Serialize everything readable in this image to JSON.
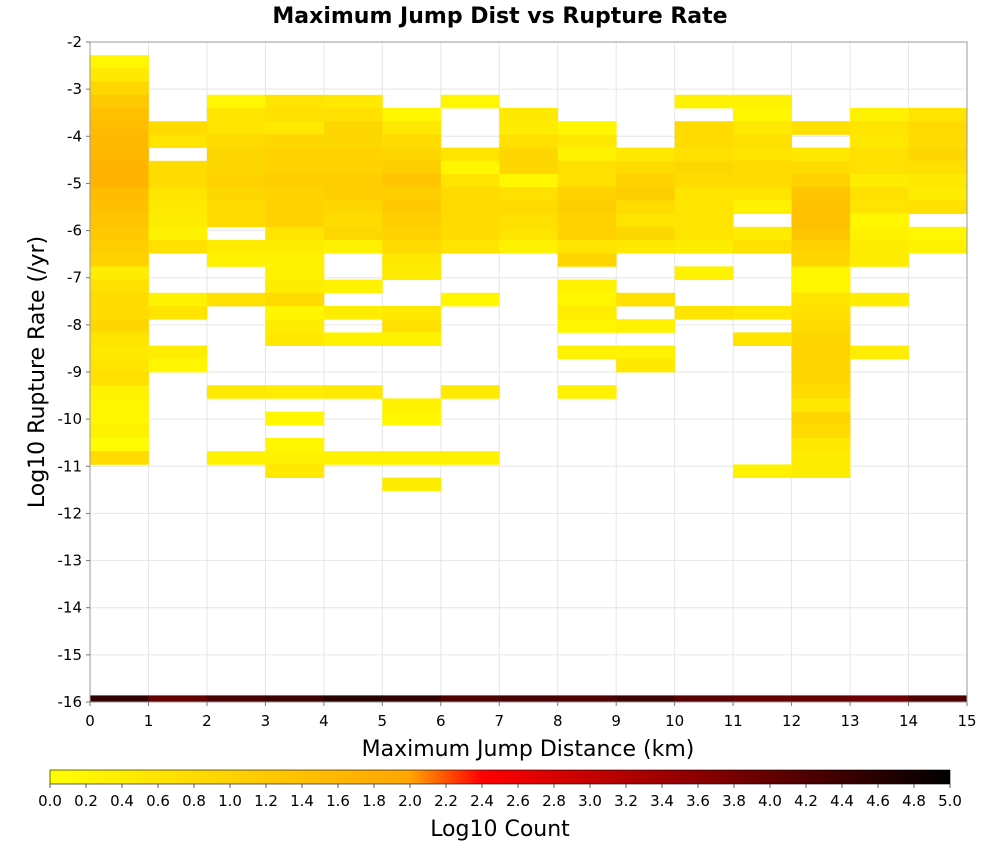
{
  "chart_data": {
    "type": "heatmap",
    "title": "Maximum Jump Dist vs Rupture Rate",
    "xlabel": "Maximum Jump Distance (km)",
    "ylabel": "Log10 Rupture Rate (/yr)",
    "colorbar_label": "Log10 Count",
    "xlim": [
      0,
      15
    ],
    "ylim": [
      -16,
      -2
    ],
    "x_ticks": [
      "0",
      "1",
      "2",
      "3",
      "4",
      "5",
      "6",
      "7",
      "8",
      "9",
      "10",
      "11",
      "12",
      "13",
      "14",
      "15"
    ],
    "y_ticks": [
      "-2",
      "-3",
      "-4",
      "-5",
      "-6",
      "-7",
      "-8",
      "-9",
      "-10",
      "-11",
      "-12",
      "-13",
      "-14",
      "-15",
      "-16"
    ],
    "x_bin_width": 1,
    "y_bin_height": 0.28,
    "colorbar_range": [
      0,
      5
    ],
    "colorbar_ticks": [
      "0.0",
      "0.2",
      "0.4",
      "0.6",
      "0.8",
      "1.0",
      "1.2",
      "1.4",
      "1.6",
      "1.8",
      "2.0",
      "2.2",
      "2.4",
      "2.6",
      "2.8",
      "3.0",
      "3.2",
      "3.4",
      "3.6",
      "3.8",
      "4.0",
      "4.2",
      "4.4",
      "4.6",
      "4.8",
      "5.0"
    ],
    "grid": true,
    "colors": {
      "c0": "#ffff00",
      "c1": "#ffa500",
      "c2": "#ff0000",
      "c3": "#8b0000",
      "c4": "#000000",
      "grid": "#e6e6e6",
      "frame": "#999999"
    },
    "columns": [
      {
        "x": 0,
        "cells": [
          [
            -2.56,
            0.2
          ],
          [
            -2.84,
            0.5
          ],
          [
            -3.12,
            0.9
          ],
          [
            -3.4,
            1.2
          ],
          [
            -3.68,
            1.4
          ],
          [
            -3.96,
            1.5
          ],
          [
            -4.24,
            1.55
          ],
          [
            -4.52,
            1.6
          ],
          [
            -4.8,
            1.7
          ],
          [
            -5.08,
            1.7
          ],
          [
            -5.36,
            1.5
          ],
          [
            -5.64,
            1.4
          ],
          [
            -5.92,
            1.3
          ],
          [
            -6.2,
            1.2
          ],
          [
            -6.48,
            1.1
          ],
          [
            -6.76,
            1.0
          ],
          [
            -7.04,
            0.4
          ],
          [
            -7.32,
            0.7
          ],
          [
            -7.6,
            0.8
          ],
          [
            -7.88,
            0.8
          ],
          [
            -8.16,
            0.9
          ],
          [
            -8.44,
            0.6
          ],
          [
            -8.72,
            0.5
          ],
          [
            -9.0,
            0.6
          ],
          [
            -9.28,
            0.7
          ],
          [
            -9.56,
            0.3
          ],
          [
            -9.84,
            0.2
          ],
          [
            -10.12,
            0.2
          ],
          [
            -10.4,
            0.3
          ],
          [
            -10.68,
            0.1
          ],
          [
            -10.96,
            0.8
          ]
        ]
      },
      {
        "x": 1,
        "cells": [
          [
            -3.96,
            0.8
          ],
          [
            -4.24,
            0.6
          ],
          [
            -4.8,
            0.8
          ],
          [
            -5.08,
            0.8
          ],
          [
            -5.36,
            0.6
          ],
          [
            -5.64,
            0.5
          ],
          [
            -5.92,
            0.4
          ],
          [
            -6.2,
            0.3
          ],
          [
            -6.48,
            0.7
          ],
          [
            -7.6,
            0.3
          ],
          [
            -7.88,
            0.6
          ],
          [
            -8.72,
            0.4
          ],
          [
            -9.0,
            0.2
          ]
        ]
      },
      {
        "x": 2,
        "cells": [
          [
            -3.4,
            0.2
          ],
          [
            -3.68,
            0.6
          ],
          [
            -3.96,
            0.6
          ],
          [
            -4.24,
            0.8
          ],
          [
            -4.52,
            0.9
          ],
          [
            -4.8,
            0.9
          ],
          [
            -5.08,
            1.0
          ],
          [
            -5.36,
            0.9
          ],
          [
            -5.64,
            0.8
          ],
          [
            -5.92,
            0.8
          ],
          [
            -6.48,
            0.4
          ],
          [
            -6.76,
            0.3
          ],
          [
            -7.6,
            0.7
          ],
          [
            -9.56,
            0.5
          ],
          [
            -10.96,
            0.3
          ]
        ]
      },
      {
        "x": 3,
        "cells": [
          [
            -3.4,
            0.6
          ],
          [
            -3.68,
            0.7
          ],
          [
            -3.96,
            0.5
          ],
          [
            -4.24,
            0.9
          ],
          [
            -4.52,
            1.0
          ],
          [
            -4.8,
            1.0
          ],
          [
            -5.08,
            1.1
          ],
          [
            -5.36,
            1.0
          ],
          [
            -5.64,
            1.0
          ],
          [
            -5.92,
            1.0
          ],
          [
            -6.2,
            0.6
          ],
          [
            -6.48,
            0.4
          ],
          [
            -6.76,
            0.3
          ],
          [
            -7.04,
            0.3
          ],
          [
            -7.32,
            0.4
          ],
          [
            -7.6,
            0.8
          ],
          [
            -7.88,
            0.2
          ],
          [
            -8.16,
            0.4
          ],
          [
            -8.44,
            0.5
          ],
          [
            -9.56,
            0.4
          ],
          [
            -10.12,
            0.2
          ],
          [
            -10.68,
            0.2
          ],
          [
            -10.96,
            0.3
          ],
          [
            -11.24,
            0.5
          ]
        ]
      },
      {
        "x": 4,
        "cells": [
          [
            -3.4,
            0.5
          ],
          [
            -3.68,
            0.7
          ],
          [
            -3.96,
            0.9
          ],
          [
            -4.24,
            0.9
          ],
          [
            -4.52,
            1.0
          ],
          [
            -4.8,
            1.0
          ],
          [
            -5.08,
            1.1
          ],
          [
            -5.36,
            1.1
          ],
          [
            -5.64,
            0.9
          ],
          [
            -5.92,
            0.8
          ],
          [
            -6.2,
            0.9
          ],
          [
            -6.48,
            0.3
          ],
          [
            -7.32,
            0.3
          ],
          [
            -7.88,
            0.4
          ],
          [
            -8.44,
            0.3
          ],
          [
            -9.56,
            0.5
          ],
          [
            -10.96,
            0.3
          ]
        ]
      },
      {
        "x": 5,
        "cells": [
          [
            -3.68,
            0.2
          ],
          [
            -3.96,
            0.5
          ],
          [
            -4.24,
            0.8
          ],
          [
            -4.52,
            0.9
          ],
          [
            -4.8,
            1.1
          ],
          [
            -5.08,
            1.3
          ],
          [
            -5.36,
            1.1
          ],
          [
            -5.64,
            1.2
          ],
          [
            -5.92,
            1.1
          ],
          [
            -6.2,
            1.0
          ],
          [
            -6.48,
            0.8
          ],
          [
            -6.76,
            0.5
          ],
          [
            -7.04,
            0.4
          ],
          [
            -7.88,
            0.5
          ],
          [
            -8.16,
            0.7
          ],
          [
            -8.44,
            0.3
          ],
          [
            -9.84,
            0.3
          ],
          [
            -10.12,
            0.2
          ],
          [
            -10.96,
            0.3
          ],
          [
            -11.52,
            0.4
          ]
        ]
      },
      {
        "x": 6,
        "cells": [
          [
            -3.4,
            0.2
          ],
          [
            -4.52,
            0.6
          ],
          [
            -4.8,
            0.2
          ],
          [
            -5.08,
            0.6
          ],
          [
            -5.36,
            0.8
          ],
          [
            -5.64,
            0.8
          ],
          [
            -5.92,
            0.8
          ],
          [
            -6.2,
            0.8
          ],
          [
            -6.48,
            0.6
          ],
          [
            -7.6,
            0.2
          ],
          [
            -9.56,
            0.5
          ],
          [
            -10.96,
            0.3
          ]
        ]
      },
      {
        "x": 7,
        "cells": [
          [
            -3.68,
            0.5
          ],
          [
            -3.96,
            0.4
          ],
          [
            -4.24,
            0.7
          ],
          [
            -4.52,
            0.9
          ],
          [
            -4.8,
            0.9
          ],
          [
            -5.08,
            0.2
          ],
          [
            -5.36,
            0.7
          ],
          [
            -5.64,
            0.8
          ],
          [
            -5.92,
            0.7
          ],
          [
            -6.2,
            0.6
          ],
          [
            -6.48,
            0.3
          ]
        ]
      },
      {
        "x": 8,
        "cells": [
          [
            -3.96,
            0.2
          ],
          [
            -4.24,
            0.5
          ],
          [
            -4.52,
            0.3
          ],
          [
            -4.8,
            0.7
          ],
          [
            -5.08,
            0.7
          ],
          [
            -5.36,
            1.0
          ],
          [
            -5.64,
            1.1
          ],
          [
            -5.92,
            1.0
          ],
          [
            -6.2,
            1.0
          ],
          [
            -6.48,
            0.6
          ],
          [
            -6.76,
            0.9
          ],
          [
            -7.32,
            0.3
          ],
          [
            -7.6,
            0.2
          ],
          [
            -7.88,
            0.4
          ],
          [
            -8.16,
            0.2
          ],
          [
            -8.72,
            0.3
          ],
          [
            -9.56,
            0.3
          ]
        ]
      },
      {
        "x": 9,
        "cells": [
          [
            -4.52,
            0.5
          ],
          [
            -4.8,
            0.8
          ],
          [
            -5.08,
            1.0
          ],
          [
            -5.36,
            1.1
          ],
          [
            -5.64,
            0.8
          ],
          [
            -5.92,
            0.6
          ],
          [
            -6.2,
            0.9
          ],
          [
            -6.48,
            0.5
          ],
          [
            -7.6,
            0.7
          ],
          [
            -8.16,
            0.3
          ],
          [
            -8.72,
            0.3
          ],
          [
            -9.0,
            0.5
          ]
        ]
      },
      {
        "x": 10,
        "cells": [
          [
            -3.4,
            0.3
          ],
          [
            -3.96,
            0.8
          ],
          [
            -4.24,
            0.8
          ],
          [
            -4.52,
            0.7
          ],
          [
            -4.8,
            0.9
          ],
          [
            -5.08,
            0.8
          ],
          [
            -5.36,
            0.6
          ],
          [
            -5.64,
            0.6
          ],
          [
            -5.92,
            0.6
          ],
          [
            -6.2,
            0.6
          ],
          [
            -6.48,
            0.4
          ],
          [
            -7.04,
            0.3
          ],
          [
            -7.88,
            0.6
          ]
        ]
      },
      {
        "x": 11,
        "cells": [
          [
            -3.4,
            0.3
          ],
          [
            -3.68,
            0.2
          ],
          [
            -3.96,
            0.5
          ],
          [
            -4.24,
            0.7
          ],
          [
            -4.52,
            0.6
          ],
          [
            -4.8,
            0.8
          ],
          [
            -5.08,
            0.8
          ],
          [
            -5.36,
            0.6
          ],
          [
            -5.64,
            0.3
          ],
          [
            -6.2,
            0.4
          ],
          [
            -6.48,
            0.7
          ],
          [
            -7.88,
            0.5
          ],
          [
            -8.44,
            0.6
          ],
          [
            -11.24,
            0.3
          ]
        ]
      },
      {
        "x": 12,
        "cells": [
          [
            -3.96,
            0.7
          ],
          [
            -4.52,
            0.5
          ],
          [
            -4.8,
            0.8
          ],
          [
            -5.08,
            1.0
          ],
          [
            -5.36,
            1.3
          ],
          [
            -5.64,
            1.4
          ],
          [
            -5.92,
            1.4
          ],
          [
            -6.2,
            1.3
          ],
          [
            -6.48,
            1.0
          ],
          [
            -6.76,
            0.9
          ],
          [
            -7.04,
            0.2
          ],
          [
            -7.32,
            0.2
          ],
          [
            -7.6,
            0.6
          ],
          [
            -7.88,
            0.7
          ],
          [
            -8.16,
            0.8
          ],
          [
            -8.44,
            0.9
          ],
          [
            -8.72,
            1.0
          ],
          [
            -9.0,
            0.9
          ],
          [
            -9.28,
            0.9
          ],
          [
            -9.56,
            0.8
          ],
          [
            -9.84,
            0.5
          ],
          [
            -10.12,
            0.9
          ],
          [
            -10.4,
            0.8
          ],
          [
            -10.68,
            0.5
          ],
          [
            -10.96,
            0.4
          ],
          [
            -11.24,
            0.4
          ]
        ]
      },
      {
        "x": 13,
        "cells": [
          [
            -3.68,
            0.3
          ],
          [
            -3.96,
            0.6
          ],
          [
            -4.24,
            0.5
          ],
          [
            -4.52,
            0.7
          ],
          [
            -4.8,
            0.7
          ],
          [
            -5.08,
            0.4
          ],
          [
            -5.36,
            0.7
          ],
          [
            -5.64,
            0.6
          ],
          [
            -5.92,
            0.2
          ],
          [
            -6.2,
            0.3
          ],
          [
            -6.48,
            0.4
          ],
          [
            -6.76,
            0.4
          ],
          [
            -7.6,
            0.4
          ],
          [
            -8.72,
            0.4
          ]
        ]
      },
      {
        "x": 14,
        "cells": [
          [
            -3.68,
            0.6
          ],
          [
            -3.96,
            0.8
          ],
          [
            -4.24,
            0.8
          ],
          [
            -4.52,
            0.9
          ],
          [
            -4.8,
            0.7
          ],
          [
            -5.08,
            0.5
          ],
          [
            -5.36,
            0.4
          ],
          [
            -5.64,
            0.7
          ],
          [
            -6.2,
            0.2
          ],
          [
            -6.48,
            0.3
          ]
        ]
      }
    ],
    "bottom_row": {
      "y": -16,
      "values": [
        4.5,
        4.0,
        4.3,
        4.4,
        4.6,
        4.5,
        4.2,
        4.3,
        4.2,
        4.4,
        4.1,
        4.0,
        4.0,
        3.9,
        4.2
      ]
    }
  }
}
